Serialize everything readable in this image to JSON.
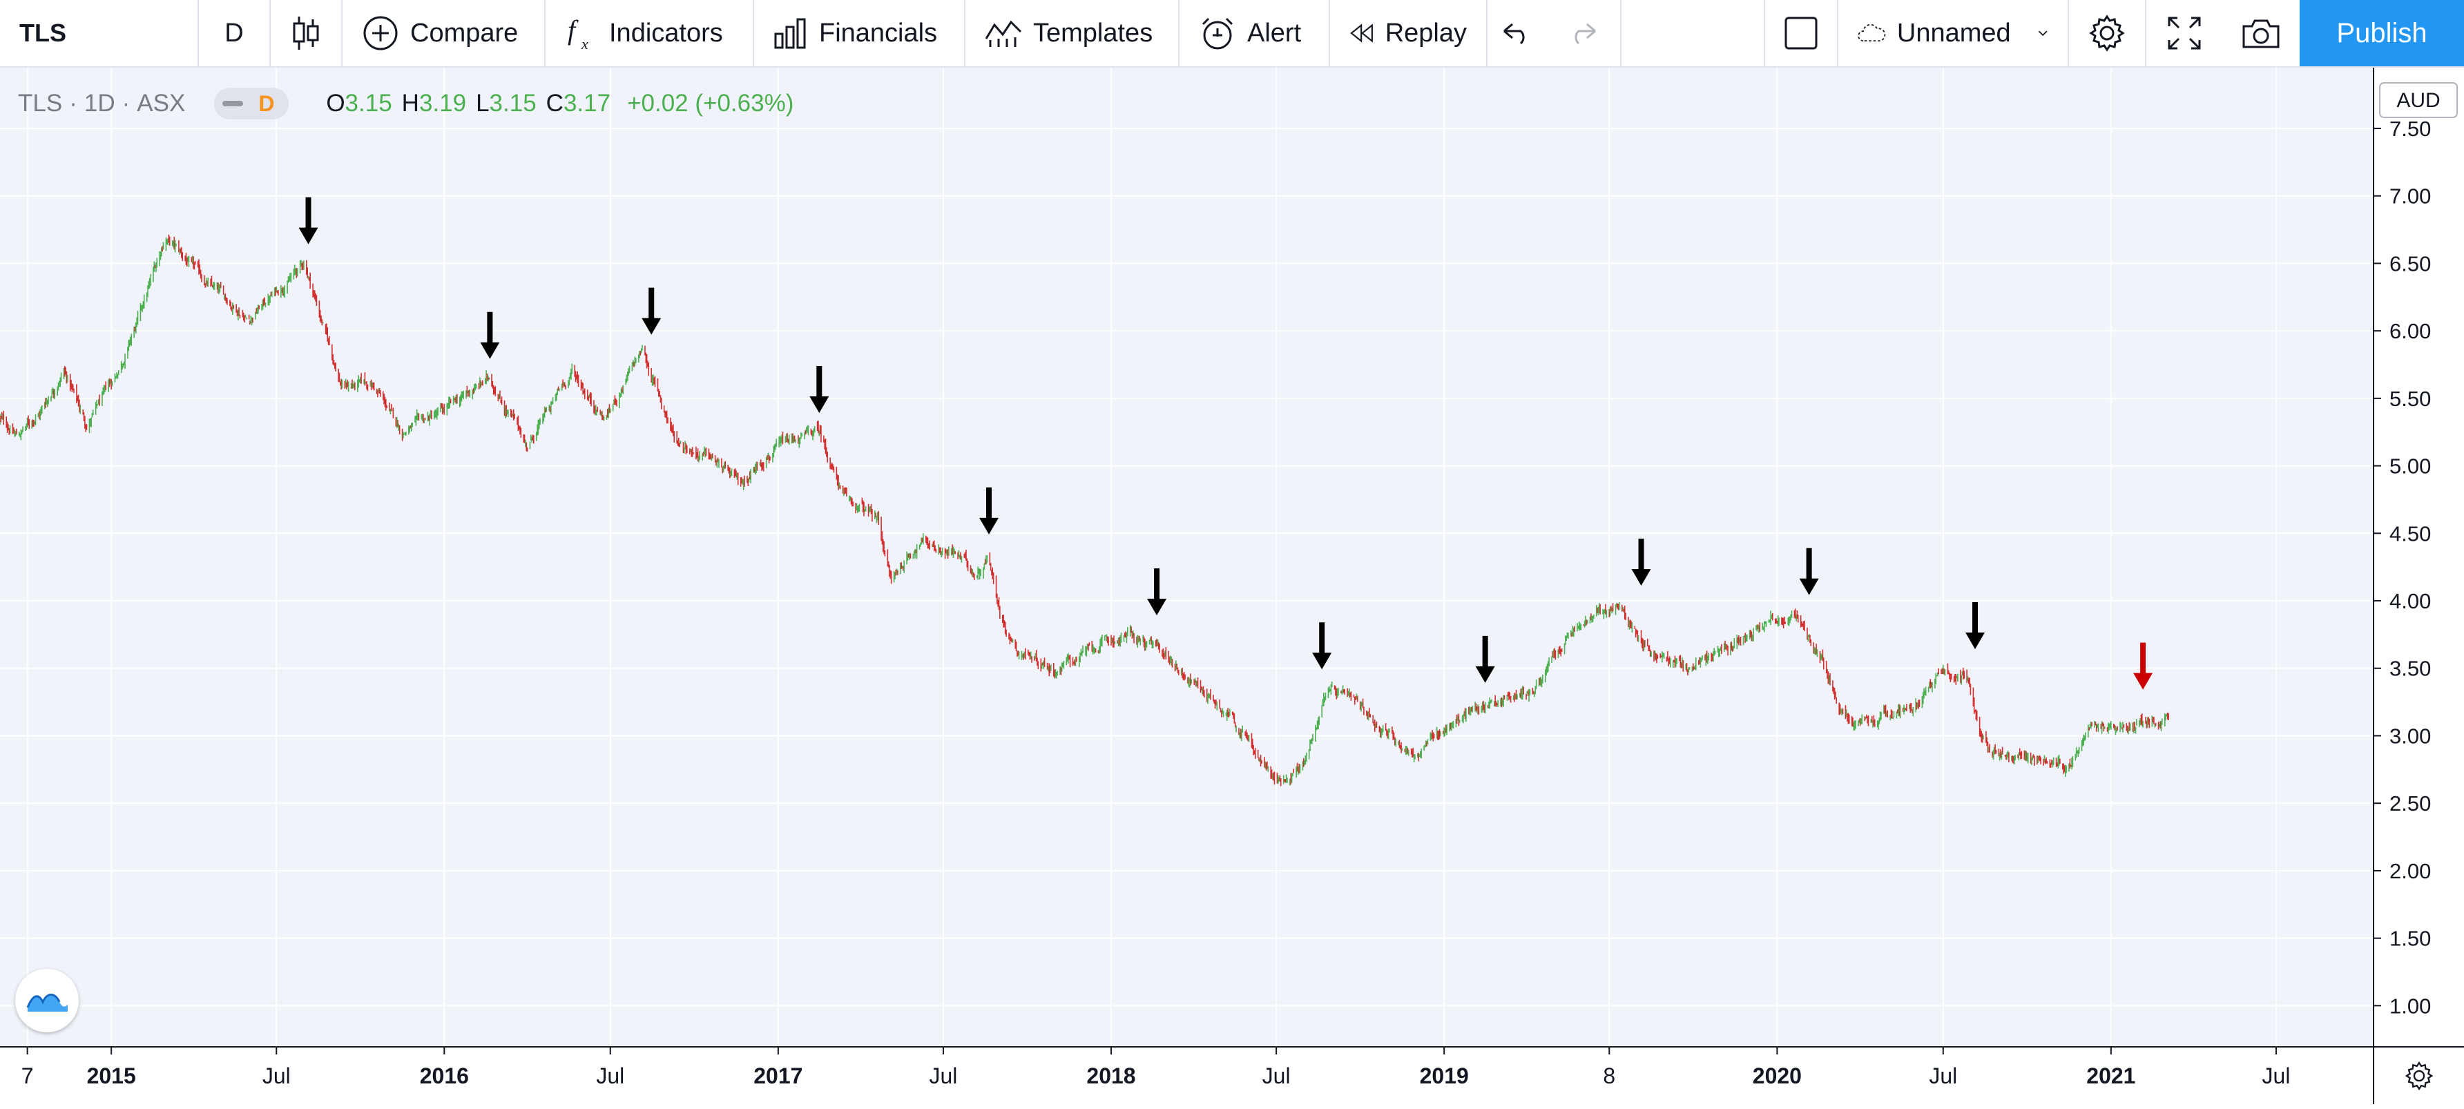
{
  "toolbar": {
    "symbol": "TLS",
    "interval": "D",
    "compare": "Compare",
    "indicators": "Indicators",
    "financials": "Financials",
    "templates": "Templates",
    "alert": "Alert",
    "replay": "Replay",
    "layout_name": "Unnamed",
    "publish": "Publish"
  },
  "legend": {
    "symbol": "TLS",
    "interval": "1D",
    "exchange": "ASX",
    "interval_badge": "D",
    "open_label": "O",
    "open": "3.15",
    "high_label": "H",
    "high": "3.19",
    "low_label": "L",
    "low": "3.15",
    "close_label": "C",
    "close": "3.17",
    "change": "+0.02 (+0.63%)"
  },
  "colors": {
    "up": "#4caf50",
    "down": "#d32f2f",
    "arrow": "#000000",
    "last_arrow": "#cc0000",
    "accent": "#2196f3",
    "background": "#f0f3fa"
  },
  "chart_data": {
    "type": "line",
    "title": "",
    "symbol": "TLS",
    "exchange": "ASX",
    "currency": "AUD",
    "interval": "1D",
    "style": "candlestick",
    "y_axis": {
      "label": "AUD",
      "range": [
        0.7,
        7.95
      ],
      "ticks": [
        "7.50",
        "7.00",
        "6.50",
        "6.00",
        "5.50",
        "5.00",
        "4.50",
        "4.00",
        "3.50",
        "3.00",
        "2.50",
        "2.00",
        "1.50",
        "1.00"
      ]
    },
    "x_axis": {
      "range": [
        "2014-09-01",
        "2021-10-15"
      ],
      "ticks": [
        {
          "date": "2014-10-01",
          "label": "7"
        },
        {
          "date": "2015-01-01",
          "label": "2015"
        },
        {
          "date": "2015-07-01",
          "label": "Jul"
        },
        {
          "date": "2016-01-01",
          "label": "2016"
        },
        {
          "date": "2016-07-01",
          "label": "Jul"
        },
        {
          "date": "2017-01-01",
          "label": "2017"
        },
        {
          "date": "2017-07-01",
          "label": "Jul"
        },
        {
          "date": "2018-01-01",
          "label": "2018"
        },
        {
          "date": "2018-07-01",
          "label": "Jul"
        },
        {
          "date": "2019-01-01",
          "label": "2019"
        },
        {
          "date": "2019-07-01",
          "label": "8"
        },
        {
          "date": "2020-01-01",
          "label": "2020"
        },
        {
          "date": "2020-07-01",
          "label": "Jul"
        },
        {
          "date": "2021-01-01",
          "label": "2021"
        },
        {
          "date": "2021-07-01",
          "label": "Jul"
        }
      ]
    },
    "grid": true,
    "series": [
      {
        "values": [
          {
            "x": "2014-09-01",
            "y": 5.35
          },
          {
            "x": "2014-09-20",
            "y": 5.22
          },
          {
            "x": "2014-10-15",
            "y": 5.4
          },
          {
            "x": "2014-11-10",
            "y": 5.72
          },
          {
            "x": "2014-12-05",
            "y": 5.3
          },
          {
            "x": "2015-01-05",
            "y": 5.65
          },
          {
            "x": "2015-02-01",
            "y": 6.1
          },
          {
            "x": "2015-03-01",
            "y": 6.7
          },
          {
            "x": "2015-04-15",
            "y": 6.35
          },
          {
            "x": "2015-06-01",
            "y": 6.1
          },
          {
            "x": "2015-08-01",
            "y": 6.5
          },
          {
            "x": "2015-09-10",
            "y": 5.6
          },
          {
            "x": "2015-10-15",
            "y": 5.6
          },
          {
            "x": "2015-11-15",
            "y": 5.25
          },
          {
            "x": "2016-01-01",
            "y": 5.4
          },
          {
            "x": "2016-02-20",
            "y": 5.65
          },
          {
            "x": "2016-04-01",
            "y": 5.15
          },
          {
            "x": "2016-05-20",
            "y": 5.7
          },
          {
            "x": "2016-06-25",
            "y": 5.35
          },
          {
            "x": "2016-08-05",
            "y": 5.85
          },
          {
            "x": "2016-09-10",
            "y": 5.2
          },
          {
            "x": "2016-10-20",
            "y": 5.05
          },
          {
            "x": "2016-11-20",
            "y": 4.85
          },
          {
            "x": "2016-12-20",
            "y": 5.1
          },
          {
            "x": "2017-02-15",
            "y": 5.25
          },
          {
            "x": "2017-03-15",
            "y": 4.75
          },
          {
            "x": "2017-04-20",
            "y": 4.6
          },
          {
            "x": "2017-05-05",
            "y": 4.15
          },
          {
            "x": "2017-06-05",
            "y": 4.45
          },
          {
            "x": "2017-07-15",
            "y": 4.35
          },
          {
            "x": "2017-08-05",
            "y": 4.2
          },
          {
            "x": "2017-08-20",
            "y": 4.35
          },
          {
            "x": "2017-09-01",
            "y": 3.9
          },
          {
            "x": "2017-09-20",
            "y": 3.65
          },
          {
            "x": "2017-11-01",
            "y": 3.5
          },
          {
            "x": "2017-12-15",
            "y": 3.65
          },
          {
            "x": "2018-01-20",
            "y": 3.75
          },
          {
            "x": "2018-03-01",
            "y": 3.6
          },
          {
            "x": "2018-04-10",
            "y": 3.35
          },
          {
            "x": "2018-05-15",
            "y": 3.15
          },
          {
            "x": "2018-06-10",
            "y": 2.85
          },
          {
            "x": "2018-07-01",
            "y": 2.65
          },
          {
            "x": "2018-08-01",
            "y": 2.8
          },
          {
            "x": "2018-08-25",
            "y": 3.35
          },
          {
            "x": "2018-10-10",
            "y": 3.15
          },
          {
            "x": "2018-12-01",
            "y": 2.85
          },
          {
            "x": "2019-01-10",
            "y": 3.1
          },
          {
            "x": "2019-02-20",
            "y": 3.25
          },
          {
            "x": "2019-04-10",
            "y": 3.35
          },
          {
            "x": "2019-05-20",
            "y": 3.75
          },
          {
            "x": "2019-06-20",
            "y": 3.9
          },
          {
            "x": "2019-07-10",
            "y": 3.95
          },
          {
            "x": "2019-08-20",
            "y": 3.6
          },
          {
            "x": "2019-09-25",
            "y": 3.5
          },
          {
            "x": "2019-11-10",
            "y": 3.65
          },
          {
            "x": "2019-12-20",
            "y": 3.9
          },
          {
            "x": "2020-01-25",
            "y": 3.85
          },
          {
            "x": "2020-02-20",
            "y": 3.55
          },
          {
            "x": "2020-03-10",
            "y": 3.15
          },
          {
            "x": "2020-04-10",
            "y": 3.05
          },
          {
            "x": "2020-05-15",
            "y": 3.2
          },
          {
            "x": "2020-06-10",
            "y": 3.3
          },
          {
            "x": "2020-07-01",
            "y": 3.5
          },
          {
            "x": "2020-07-25",
            "y": 3.45
          },
          {
            "x": "2020-08-10",
            "y": 3.05
          },
          {
            "x": "2020-08-25",
            "y": 2.9
          },
          {
            "x": "2020-10-15",
            "y": 2.8
          },
          {
            "x": "2020-11-15",
            "y": 2.75
          },
          {
            "x": "2020-12-10",
            "y": 3.15
          },
          {
            "x": "2021-01-15",
            "y": 3.05
          },
          {
            "x": "2021-02-10",
            "y": 3.1
          },
          {
            "x": "2021-03-05",
            "y": 3.17
          }
        ]
      }
    ],
    "annotations": [
      {
        "type": "arrow-down",
        "x": "2015-08-05",
        "y": 6.55,
        "color": "black"
      },
      {
        "type": "arrow-down",
        "x": "2016-02-20",
        "y": 5.7,
        "color": "black"
      },
      {
        "type": "arrow-down",
        "x": "2016-08-15",
        "y": 5.88,
        "color": "black"
      },
      {
        "type": "arrow-down",
        "x": "2017-02-15",
        "y": 5.3,
        "color": "black"
      },
      {
        "type": "arrow-down",
        "x": "2017-08-20",
        "y": 4.4,
        "color": "black"
      },
      {
        "type": "arrow-down",
        "x": "2018-02-20",
        "y": 3.8,
        "color": "black"
      },
      {
        "type": "arrow-down",
        "x": "2018-08-20",
        "y": 3.4,
        "color": "black"
      },
      {
        "type": "arrow-down",
        "x": "2019-02-15",
        "y": 3.3,
        "color": "black"
      },
      {
        "type": "arrow-down",
        "x": "2019-08-05",
        "y": 4.02,
        "color": "black"
      },
      {
        "type": "arrow-down",
        "x": "2020-02-05",
        "y": 3.95,
        "color": "black"
      },
      {
        "type": "arrow-down",
        "x": "2020-08-05",
        "y": 3.55,
        "color": "black"
      },
      {
        "type": "arrow-down",
        "x": "2021-02-05",
        "y": 3.25,
        "color": "red"
      }
    ],
    "currency_label": "AUD"
  }
}
